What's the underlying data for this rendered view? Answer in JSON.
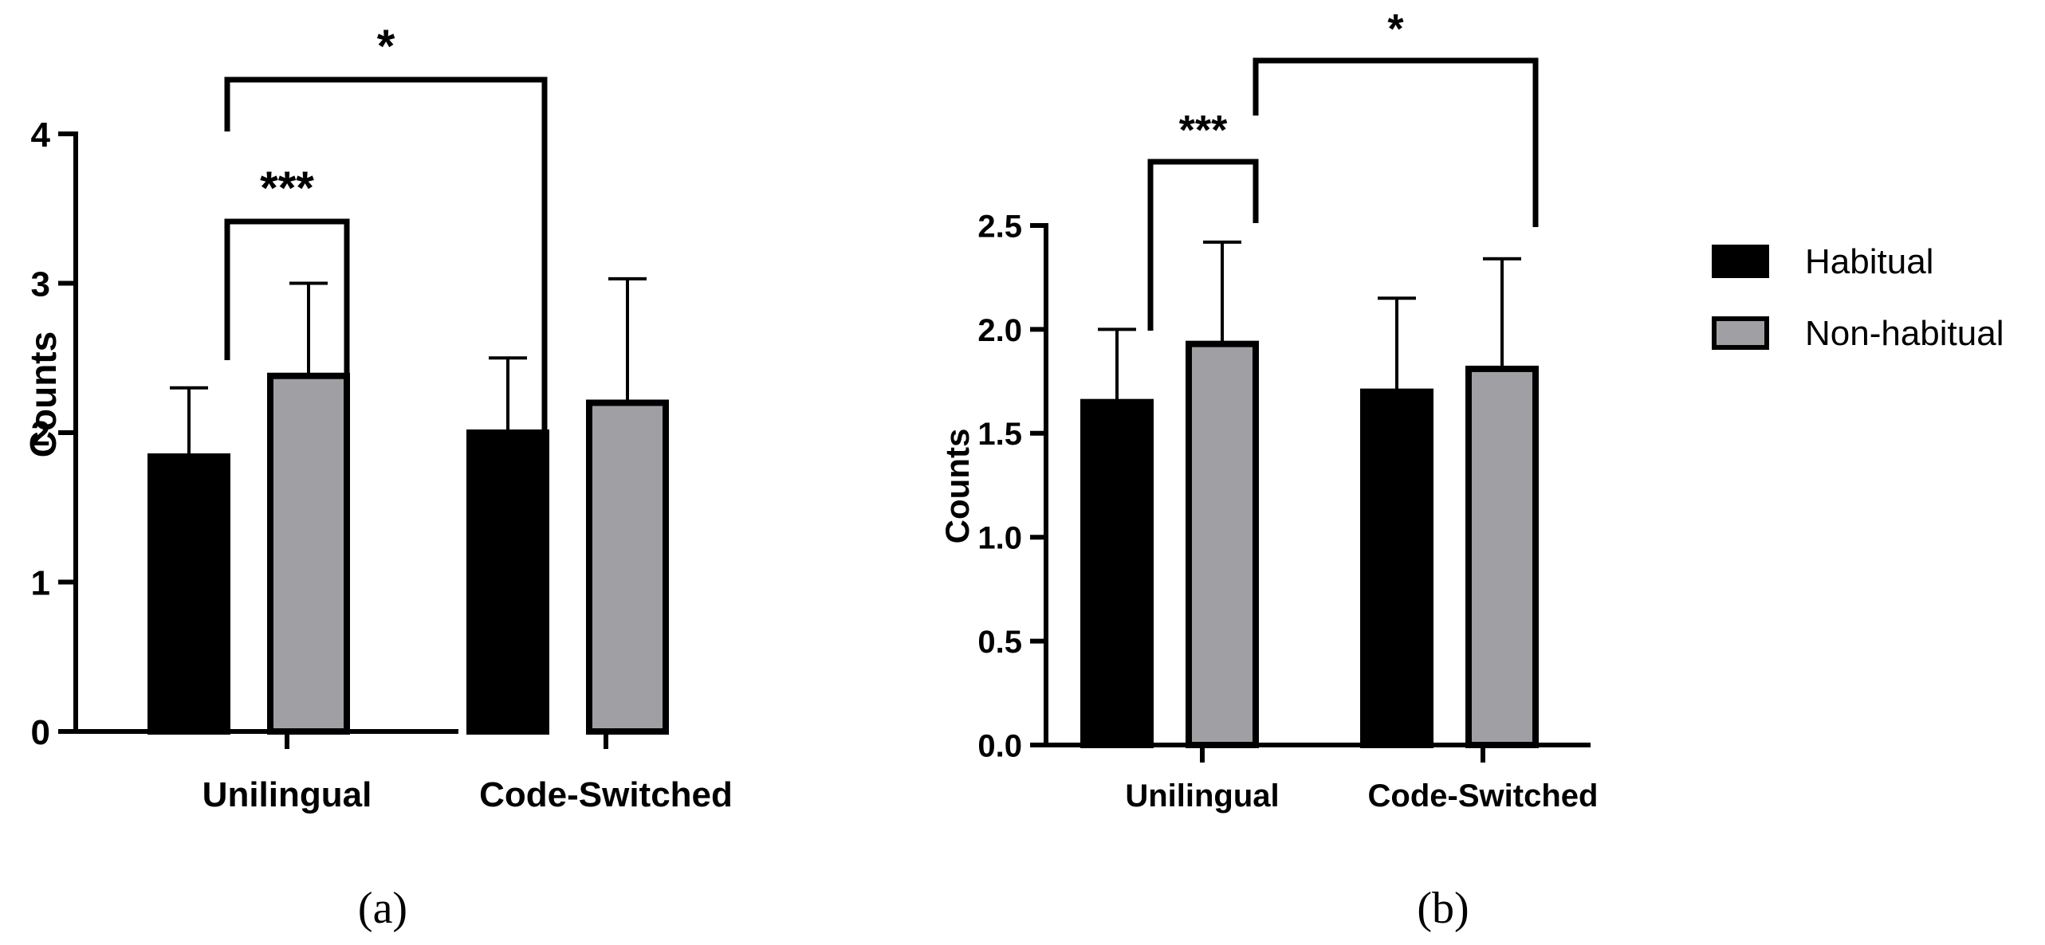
{
  "chart_data": [
    {
      "id": "a",
      "type": "bar",
      "panel_label": "(a)",
      "categories": [
        "Unilingual",
        "Code-Switched"
      ],
      "series": [
        {
          "name": "Habitual",
          "color": "#000000",
          "values": [
            1.84,
            2.0
          ],
          "errors": [
            0.46,
            0.5
          ]
        },
        {
          "name": "Non-habitual",
          "color": "#a0a0a4",
          "values": [
            2.38,
            2.2
          ],
          "errors": [
            0.62,
            0.83
          ]
        }
      ],
      "ylabel": "Counts",
      "ylim": [
        0,
        4
      ],
      "yticks": [
        0,
        1,
        2,
        3,
        4
      ],
      "ytick_labels": [
        "0",
        "1",
        "2",
        "3",
        "4"
      ],
      "significance": [
        {
          "label": "***",
          "from": [
            0,
            "Habitual"
          ],
          "to": [
            0,
            "Non-habitual"
          ]
        },
        {
          "label": "*",
          "from": [
            0,
            "Habitual"
          ],
          "to": [
            1,
            "Habitual"
          ]
        }
      ]
    },
    {
      "id": "b",
      "type": "bar",
      "panel_label": "(b)",
      "categories": [
        "Unilingual",
        "Code-Switched"
      ],
      "series": [
        {
          "name": "Habitual",
          "color": "#000000",
          "values": [
            1.65,
            1.7
          ],
          "errors": [
            0.35,
            0.45
          ]
        },
        {
          "name": "Non-habitual",
          "color": "#a0a0a4",
          "values": [
            1.93,
            1.81
          ],
          "errors": [
            0.49,
            0.53
          ]
        }
      ],
      "ylabel": "Counts",
      "ylim": [
        0,
        2.5
      ],
      "yticks": [
        0,
        0.5,
        1.0,
        1.5,
        2.0,
        2.5
      ],
      "ytick_labels": [
        "0.0",
        "0.5",
        "1.0",
        "1.5",
        "2.0",
        "2.5"
      ],
      "significance": [
        {
          "label": "***",
          "from": [
            0,
            "Habitual"
          ],
          "to": [
            0,
            "Non-habitual"
          ]
        },
        {
          "label": "*",
          "from": [
            0,
            "Non-habitual"
          ],
          "to": [
            1,
            "Non-habitual"
          ]
        }
      ]
    }
  ],
  "legend": {
    "items": [
      {
        "name": "Habitual",
        "color": "#000000"
      },
      {
        "name": "Non-habitual",
        "color": "#a0a0a4"
      }
    ]
  }
}
